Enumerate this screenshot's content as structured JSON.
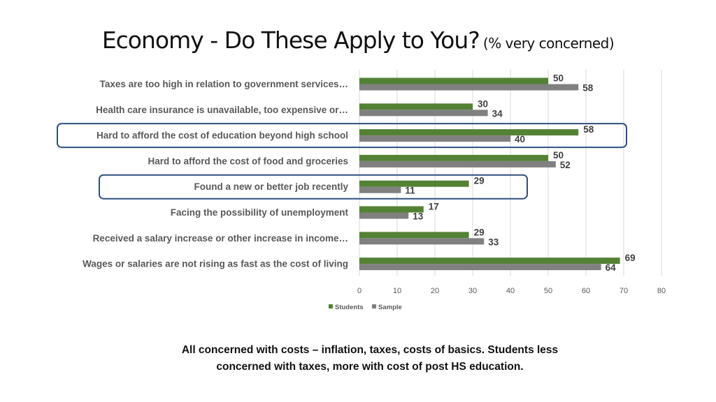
{
  "title": {
    "main": "Economy -  Do These Apply to You?",
    "sub": "(% very concerned)"
  },
  "caption": {
    "line1": "All concerned with costs – inflation, taxes, costs of basics. Students less",
    "line2": "concerned with taxes, more with cost of post HS education."
  },
  "colors": {
    "students": "#548235",
    "sample": "#808080",
    "highlight": "#2f4f7f",
    "gridline": "#d9d9d9"
  },
  "chart_data": {
    "type": "bar",
    "orientation": "horizontal",
    "categories": [
      "Taxes are too high in relation to government services…",
      "Health care insurance is unavailable, too expensive or…",
      "Hard to afford the cost of education beyond high school",
      "Hard to afford the cost of food and groceries",
      "Found a new or better job recently",
      "Facing the possibility of unemployment",
      "Received a salary increase or other increase in income…",
      "Wages or salaries are not rising as fast as the cost of living"
    ],
    "series": [
      {
        "name": "Students",
        "values": [
          50,
          30,
          58,
          50,
          29,
          17,
          29,
          69
        ]
      },
      {
        "name": "Sample",
        "values": [
          58,
          34,
          40,
          52,
          11,
          13,
          33,
          64
        ]
      }
    ],
    "xlim": [
      0,
      80
    ],
    "xticks": [
      0,
      10,
      20,
      30,
      40,
      50,
      60,
      70,
      80
    ],
    "grid": "vertical",
    "legend": "bottom-center",
    "data_labels": true,
    "highlighted_categories": [
      "Hard to afford the cost of education beyond high school",
      "Found a new or better job recently"
    ]
  }
}
